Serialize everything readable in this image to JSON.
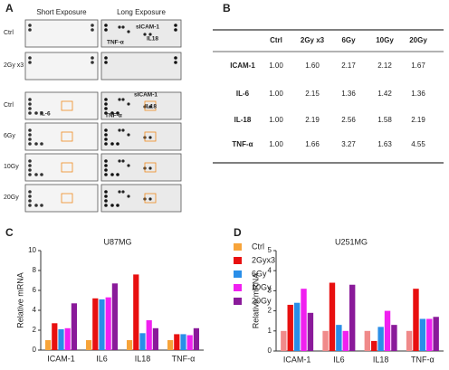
{
  "panel_labels": [
    "A",
    "B",
    "C",
    "D"
  ],
  "panel_a": {
    "headers": [
      "Short Exposure",
      "Long Exposure"
    ],
    "rows": [
      "Ctrl",
      "2Gy x3",
      "Ctrl",
      "6Gy",
      "10Gy",
      "20Gy"
    ],
    "annotations": [
      {
        "text": "sICAM-1",
        "color": "#e02020"
      },
      {
        "text": "IL18",
        "color": "#2060d0"
      },
      {
        "text": "TNF-α",
        "color": "#20a040"
      },
      {
        "text": "IL-6",
        "color": "#f08a20"
      },
      {
        "text": "sICAM-1",
        "color": "#e02020"
      },
      {
        "text": "IL18",
        "color": "#2060d0"
      },
      {
        "text": "TNF-α",
        "color": "#20a040"
      }
    ]
  },
  "table": {
    "columns": [
      "Ctrl",
      "2Gy x3",
      "6Gy",
      "10Gy",
      "20Gy"
    ],
    "rows": [
      {
        "label": "ICAM-1",
        "color": "#c02020",
        "cells": [
          "1.00",
          "1.60",
          "2.17",
          "2.12",
          "1.67"
        ]
      },
      {
        "label": "IL-6",
        "color": "#f08a20",
        "cells": [
          "1.00",
          "2.15",
          "1.36",
          "1.42",
          "1.36"
        ]
      },
      {
        "label": "IL-18",
        "color": "#203c90",
        "cells": [
          "1.00",
          "2.19",
          "2.56",
          "1.58",
          "2.19"
        ]
      },
      {
        "label": "TNF-α",
        "color": "#20a040",
        "cells": [
          "1.00",
          "1.66",
          "3.27",
          "1.63",
          "4.55"
        ]
      }
    ]
  },
  "chart_data": [
    {
      "type": "bar",
      "title": "U87MG",
      "y_label": "Relative mRNA",
      "categories": [
        "ICAM-1",
        "IL6",
        "IL18",
        "TNF-α"
      ],
      "ylim": [
        0,
        10
      ],
      "yticks": [
        0,
        2,
        4,
        6,
        8,
        10
      ],
      "series": [
        {
          "name": "Ctrl",
          "color": "#f7a43a",
          "values": [
            1.0,
            1.0,
            1.0,
            1.0
          ]
        },
        {
          "name": "2Gyx3",
          "color": "#e81010",
          "values": [
            2.7,
            5.2,
            7.6,
            1.6
          ]
        },
        {
          "name": "6Gy",
          "color": "#2a8ee8",
          "values": [
            2.1,
            5.1,
            1.7,
            1.6
          ]
        },
        {
          "name": "10Gy",
          "color": "#f020f0",
          "values": [
            2.2,
            5.3,
            3.0,
            1.5
          ]
        },
        {
          "name": "20Gy",
          "color": "#8a1a9a",
          "values": [
            4.7,
            6.7,
            2.2,
            2.2
          ]
        }
      ]
    },
    {
      "type": "bar",
      "title": "U251MG",
      "y_label": "Relative mRNA",
      "categories": [
        "ICAM-1",
        "IL6",
        "IL18",
        "TNF-α"
      ],
      "ylim": [
        0,
        5
      ],
      "yticks": [
        0,
        1,
        2,
        3,
        4,
        5
      ],
      "series": [
        {
          "color": "#f08a8a",
          "values": [
            1.0,
            1.0,
            1.0,
            1.0
          ]
        },
        {
          "color": "#e81010",
          "values": [
            2.3,
            3.4,
            0.5,
            3.1
          ]
        },
        {
          "color": "#2a8ee8",
          "values": [
            2.4,
            1.3,
            1.2,
            1.6
          ]
        },
        {
          "color": "#f020f0",
          "values": [
            3.1,
            1.0,
            2.0,
            1.6
          ]
        },
        {
          "color": "#8a1a9a",
          "values": [
            1.9,
            3.3,
            1.3,
            1.7
          ]
        }
      ]
    }
  ]
}
